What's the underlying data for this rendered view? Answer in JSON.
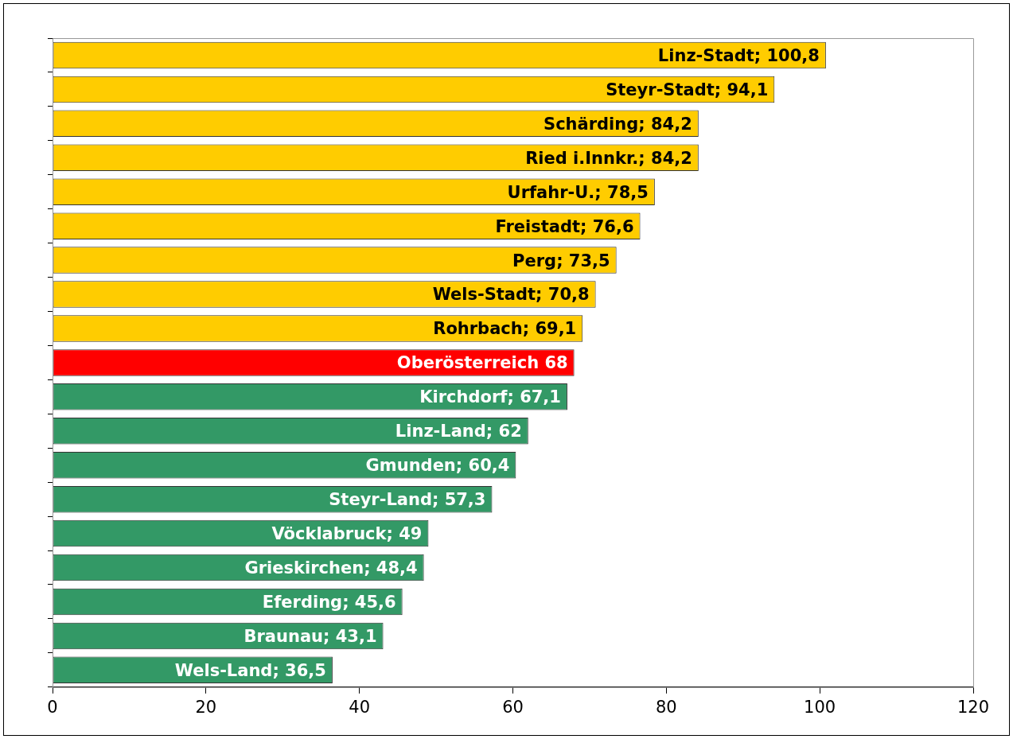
{
  "chart_data": {
    "type": "bar",
    "orientation": "horizontal",
    "categories": [
      null,
      null,
      null,
      null,
      null,
      null,
      null,
      null,
      null,
      null,
      null,
      null,
      null,
      null,
      null,
      null,
      null,
      null,
      null
    ],
    "values": [
      100.8,
      94.1,
      84.2,
      84.2,
      78.5,
      76.6,
      73.5,
      70.8,
      69.1,
      68,
      67.1,
      62,
      60.4,
      57.3,
      49,
      48.4,
      45.6,
      43.1,
      36.5
    ],
    "colors": [
      "#ffcc00",
      "#ffcc00",
      "#ffcc00",
      "#ffcc00",
      "#ffcc00",
      "#ffcc00",
      "#ffcc00",
      "#ffcc00",
      "#ffcc00",
      "#ff0000",
      "#339966",
      "#339966",
      "#339966",
      "#339966",
      "#339966",
      "#339966",
      "#339966",
      "#339966",
      "#339966"
    ],
    "value_labels": [
      "Linz-Stadt; 100,8",
      "Steyr-Stadt; 94,1",
      "Schärding; 84,2",
      "Ried i.Innkr.; 84,2",
      "Urfahr-U.; 78,5",
      "Freistadt; 76,6",
      "Perg; 73,5",
      "Wels-Stadt; 70,8",
      "Rohrbach; 69,1",
      "Oberösterreich 68",
      "Kirchdorf; 67,1",
      "Linz-Land; 62",
      "Gmunden; 60,4",
      "Steyr-Land; 57,3",
      "Vöcklabruck; 49",
      "Grieskirchen; 48,4",
      "Eferding; 45,6",
      "Braunau; 43,1",
      "Wels-Land; 36,5"
    ],
    "xlim": [
      0,
      120
    ],
    "xticks": [
      0,
      20,
      40,
      60,
      80,
      100,
      120
    ],
    "tick_labels": "x",
    "grid": false,
    "legend": false
  }
}
